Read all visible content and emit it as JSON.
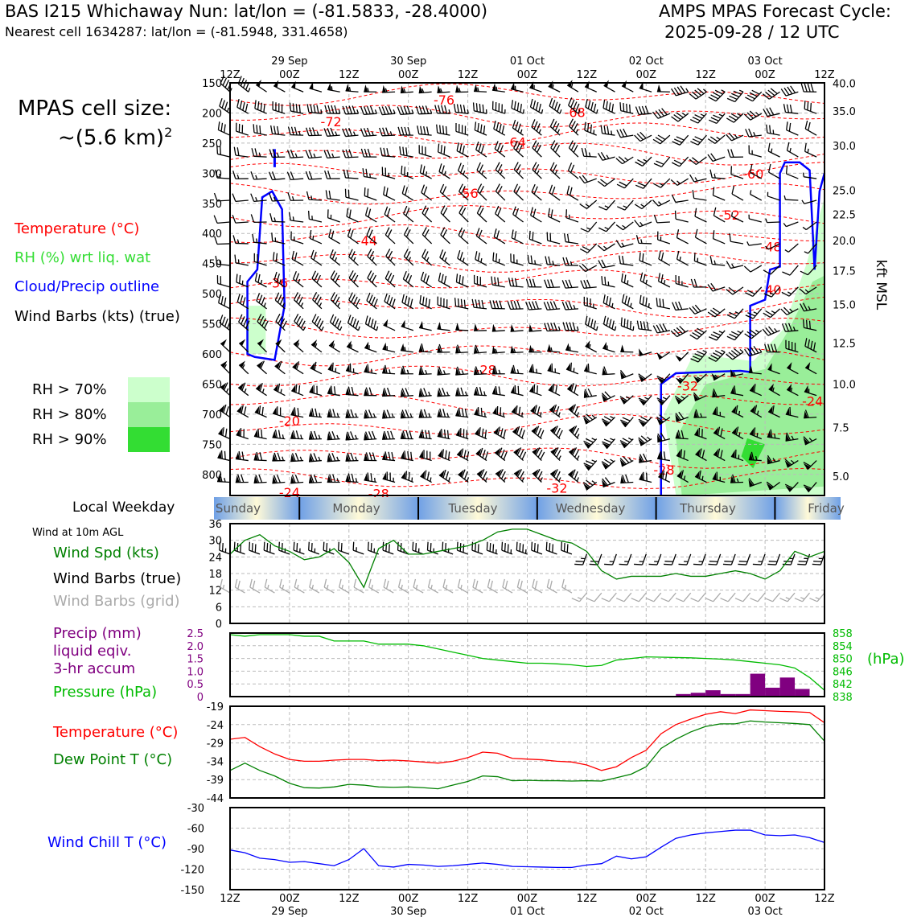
{
  "header": {
    "title": "BAS I215 Whichaway Nun: lat/lon = (-81.5833, -28.4000)",
    "subtitle": "Nearest cell 1634287: lat/lon = (-81.5948, 331.4658)",
    "right_line1": "AMPS MPAS Forecast Cycle:",
    "right_line2": "2025-09-28 / 12 UTC"
  },
  "cell_size": {
    "line1": "MPAS cell size:",
    "line2": "~(5.6 km)",
    "exponent": "2"
  },
  "legend": {
    "temperature": "Temperature (°C)",
    "rh": "RH (%) wrt liq. wat",
    "cloud": "Cloud/Precip outline",
    "barbs": "Wind Barbs (kts) (true)",
    "rh70": "RH > 70%",
    "rh80": "RH > 80%",
    "rh90": "RH > 90%"
  },
  "colors": {
    "temp": "#ff0000",
    "rh_label": "#33cc33",
    "cloud": "#0000ff",
    "rh70": "#ccffcc",
    "rh80": "#99ee99",
    "rh90": "#33dd33",
    "precip": "#800080",
    "pressure": "#00bb00",
    "dewpoint": "#008000",
    "windspd": "#008000",
    "grid_barbs": "#aaaaaa"
  },
  "time_axis": {
    "top_hours": [
      "12Z",
      "00Z",
      "12Z",
      "00Z",
      "12Z",
      "00Z",
      "12Z",
      "00Z",
      "12Z",
      "00Z",
      "12Z"
    ],
    "dates": [
      "29 Sep",
      "30 Sep",
      "01 Oct",
      "02 Oct",
      "03 Oct"
    ]
  },
  "weekday": {
    "label": "Local Weekday",
    "days": [
      "Sunday",
      "Monday",
      "Tuesday",
      "Wednesday",
      "Thursday",
      "Friday"
    ]
  },
  "chart_data": [
    {
      "type": "heatmap",
      "name": "time-height",
      "y_pressure_ticks": [
        "150",
        "200",
        "250",
        "300",
        "350",
        "400",
        "450",
        "500",
        "550",
        "600",
        "650",
        "700",
        "750",
        "800"
      ],
      "y_pressure_range": [
        150,
        835
      ],
      "kft_ticks": [
        "40.0",
        "35.0",
        "30.0",
        "25.0",
        "22.5",
        "20.0",
        "17.5",
        "15.0",
        "12.5",
        "10.0",
        "7.5",
        "5.0"
      ],
      "kft_pressures": [
        150.5,
        197,
        254,
        328,
        368,
        412,
        462,
        518,
        582,
        650,
        722,
        803
      ],
      "kft_label": "kft MSL",
      "temp_labels": [
        {
          "t": 0.36,
          "p": 186,
          "v": "-76"
        },
        {
          "t": 0.17,
          "p": 222,
          "v": "-72"
        },
        {
          "t": 0.58,
          "p": 207,
          "v": "-68"
        },
        {
          "t": 0.48,
          "p": 256,
          "v": "-64"
        },
        {
          "t": 0.88,
          "p": 309,
          "v": "-60"
        },
        {
          "t": 0.4,
          "p": 341,
          "v": "-56"
        },
        {
          "t": 0.84,
          "p": 377,
          "v": "-52"
        },
        {
          "t": 0.91,
          "p": 430,
          "v": "-48"
        },
        {
          "t": 0.23,
          "p": 420,
          "v": "-44"
        },
        {
          "t": 0.91,
          "p": 501,
          "v": "-40"
        },
        {
          "t": 0.08,
          "p": 490,
          "v": "-36"
        },
        {
          "t": 0.77,
          "p": 661,
          "v": "-32"
        },
        {
          "t": 0.43,
          "p": 634,
          "v": "-28"
        },
        {
          "t": 0.73,
          "p": 800,
          "v": "-28"
        },
        {
          "t": 0.98,
          "p": 686,
          "v": "-24"
        },
        {
          "t": 0.1,
          "p": 719,
          "v": "-20"
        },
        {
          "t": 0.1,
          "p": 838,
          "v": "-24"
        },
        {
          "t": 0.25,
          "p": 840,
          "v": "-28"
        },
        {
          "t": 0.55,
          "p": 830,
          "v": "-32"
        }
      ]
    },
    {
      "type": "line",
      "name": "wind-10m",
      "ylabel": "Wind Spd (kts)",
      "ylim": [
        0,
        36
      ],
      "yticks": [
        "36",
        "30",
        "24",
        "18",
        "12",
        "6",
        "0"
      ],
      "labels": {
        "spd": "Wind Spd (kts)",
        "barbs": "Wind Barbs (true)",
        "grid": "Wind Barbs (grid)",
        "title": "Wind at 10m AGL"
      },
      "x": [
        0,
        3,
        6,
        9,
        12,
        15,
        18,
        21,
        24,
        27,
        30,
        33,
        36,
        39,
        42,
        45,
        48,
        51,
        54,
        57,
        60,
        63,
        66,
        69,
        72,
        75,
        78,
        81,
        84,
        87,
        90,
        93,
        96,
        99,
        102,
        105,
        108,
        111,
        114,
        117,
        120
      ],
      "values": [
        25,
        30,
        32,
        28,
        26,
        23,
        24,
        27,
        22,
        13,
        27,
        30,
        25,
        25,
        26,
        27,
        28,
        30,
        33,
        34,
        34,
        32,
        30,
        29,
        26,
        19,
        16,
        17,
        17,
        17,
        18,
        17,
        17,
        18,
        19,
        18,
        16,
        19,
        26,
        24,
        26
      ]
    },
    {
      "type": "bar",
      "name": "precip-pressure",
      "labels": {
        "precip": "Precip (mm)",
        "liquid": "liquid eqiv.",
        "accum": "3-hr accum",
        "pressure": "Pressure (hPa)",
        "unit": "(hPa)"
      },
      "precip_ylim": [
        0,
        2.5
      ],
      "precip_yticks": [
        "2.5",
        "2.0",
        "1.5",
        "1.0",
        "0.5",
        "0"
      ],
      "pressure_ylim": [
        838,
        858
      ],
      "pressure_yticks": [
        "858",
        "854",
        "850",
        "846",
        "842",
        "838"
      ],
      "precip_x": [
        93,
        96,
        99,
        102,
        105,
        108,
        111,
        114,
        117
      ],
      "precip_values": [
        0.1,
        0.15,
        0.25,
        0.1,
        0.1,
        0.9,
        0.35,
        0.75,
        0.3
      ],
      "pressure_x": [
        0,
        3,
        6,
        9,
        12,
        15,
        18,
        21,
        24,
        27,
        30,
        33,
        36,
        39,
        42,
        45,
        48,
        51,
        54,
        57,
        60,
        63,
        66,
        69,
        72,
        75,
        78,
        81,
        84,
        87,
        90,
        93,
        96,
        99,
        102,
        105,
        108,
        111,
        114,
        117,
        120
      ],
      "pressure_values": [
        857.5,
        857,
        857.5,
        857.5,
        857.5,
        857,
        857,
        855.5,
        855.5,
        855.5,
        854.5,
        854.5,
        854.5,
        854,
        853,
        852,
        851,
        850,
        849.5,
        849,
        848.5,
        848.5,
        848.3,
        848,
        847.5,
        847.8,
        849.5,
        850,
        850.5,
        850.4,
        850.3,
        850.2,
        850,
        849.8,
        849.5,
        849,
        848.5,
        848,
        847,
        844,
        840
      ]
    },
    {
      "type": "line",
      "name": "temperature",
      "labels": {
        "temp": "Temperature (°C)",
        "dew": "Dew Point T (°C)"
      },
      "ylim": [
        -44,
        -19
      ],
      "yticks": [
        "-19",
        "-24",
        "-29",
        "-34",
        "-39",
        "-44"
      ],
      "x": [
        0,
        3,
        6,
        9,
        12,
        15,
        18,
        21,
        24,
        27,
        30,
        33,
        36,
        39,
        42,
        45,
        48,
        51,
        54,
        57,
        60,
        63,
        66,
        69,
        72,
        75,
        78,
        81,
        84,
        87,
        90,
        93,
        96,
        99,
        102,
        105,
        108,
        111,
        114,
        117,
        120
      ],
      "temp": [
        -28,
        -27.5,
        -30,
        -32,
        -33.5,
        -34,
        -34,
        -33.7,
        -33.5,
        -33.5,
        -33.8,
        -33.7,
        -33.9,
        -34.2,
        -34.5,
        -34,
        -33,
        -31.5,
        -31.8,
        -33.2,
        -33.4,
        -33.6,
        -34,
        -34.2,
        -35,
        -36.5,
        -35.5,
        -33,
        -31,
        -26.5,
        -24,
        -22.5,
        -21.2,
        -20.5,
        -21,
        -20,
        -20.2,
        -20.4,
        -20.5,
        -20.7,
        -23.5
      ],
      "dew": [
        -36.5,
        -34.5,
        -36.5,
        -38,
        -40,
        -41.2,
        -41.3,
        -41,
        -40.3,
        -40.5,
        -41,
        -41.1,
        -41,
        -41.2,
        -41.5,
        -40.5,
        -39.5,
        -38,
        -38.2,
        -39.3,
        -39.2,
        -39.3,
        -39.3,
        -39.4,
        -39.3,
        -39.4,
        -38.5,
        -37.5,
        -35.5,
        -30.5,
        -28,
        -26,
        -24.5,
        -23.8,
        -23.8,
        -23,
        -23.3,
        -23.5,
        -23.7,
        -24,
        -28.5
      ]
    },
    {
      "type": "line",
      "name": "wind-chill",
      "labels": {
        "wc": "Wind Chill T (°C)"
      },
      "ylim": [
        -150,
        -30
      ],
      "yticks": [
        "-30",
        "-60",
        "-90",
        "-120",
        "-150"
      ],
      "x": [
        0,
        3,
        6,
        9,
        12,
        15,
        18,
        21,
        24,
        27,
        30,
        33,
        36,
        39,
        42,
        45,
        48,
        51,
        54,
        57,
        60,
        63,
        66,
        69,
        72,
        75,
        78,
        81,
        84,
        87,
        90,
        93,
        96,
        99,
        102,
        105,
        108,
        111,
        114,
        117,
        120
      ],
      "values": [
        -92,
        -96,
        -104,
        -106,
        -110,
        -109,
        -112,
        -115,
        -106,
        -90,
        -115,
        -117,
        -113,
        -114,
        -116,
        -115,
        -113,
        -111,
        -113,
        -116,
        -116.5,
        -117,
        -117.5,
        -117.5,
        -114,
        -112,
        -101,
        -105,
        -102,
        -88,
        -75,
        -70,
        -67,
        -65,
        -63,
        -63,
        -70,
        -71,
        -70,
        -74,
        -81
      ]
    }
  ]
}
